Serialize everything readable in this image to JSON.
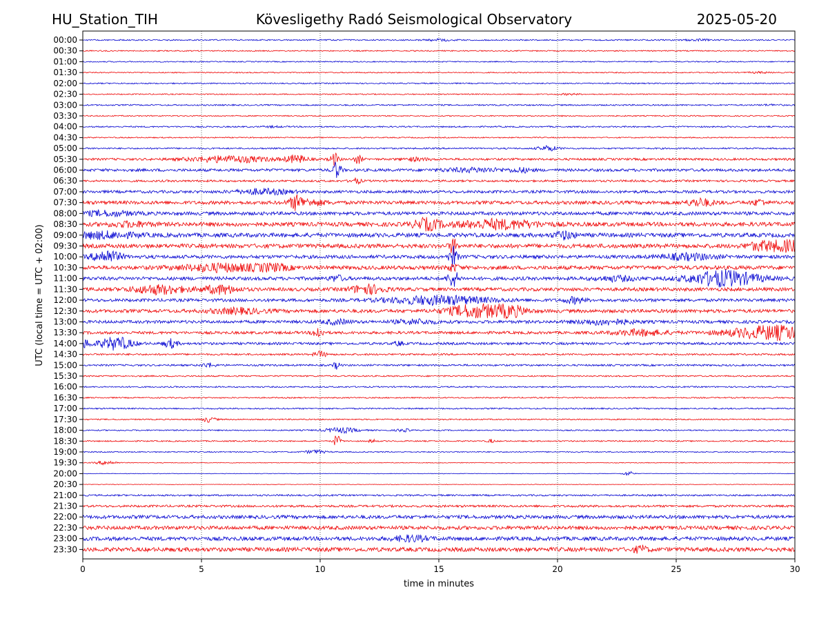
{
  "header": {
    "station": "HU_Station_TIH",
    "observatory": "Kövesligethy Radó Seismological Observatory",
    "date": "2025-05-20"
  },
  "chart_data": {
    "type": "line",
    "title": "Kövesligethy Radó Seismological Observatory",
    "xlabel": "time in minutes",
    "ylabel": "UTC (local time = UTC + 02:00)",
    "xlim": [
      0,
      30
    ],
    "xticks": [
      "0",
      "5",
      "10",
      "15",
      "20",
      "25",
      "30"
    ],
    "xgrid_minutes": [
      5,
      10,
      15,
      20,
      25
    ],
    "grid": "vertical dotted",
    "colors": {
      "even_row": "#0000d0",
      "odd_row": "#ee0000"
    },
    "rows": [
      {
        "label": "00:00",
        "amp": 0.9,
        "events": [
          [
            15,
            1.2,
            0.5
          ],
          [
            26,
            1.0,
            0.4
          ]
        ]
      },
      {
        "label": "00:30",
        "amp": 0.8,
        "events": []
      },
      {
        "label": "01:00",
        "amp": 0.8,
        "events": []
      },
      {
        "label": "01:30",
        "amp": 0.8,
        "events": [
          [
            28.5,
            1.0,
            0.3
          ]
        ]
      },
      {
        "label": "02:00",
        "amp": 0.9,
        "events": []
      },
      {
        "label": "02:30",
        "amp": 0.8,
        "events": [
          [
            20.5,
            0.9,
            0.3
          ]
        ]
      },
      {
        "label": "03:00",
        "amp": 1.0,
        "events": [
          [
            29,
            0.8,
            0.3
          ]
        ]
      },
      {
        "label": "03:30",
        "amp": 0.8,
        "events": []
      },
      {
        "label": "04:00",
        "amp": 1.0,
        "events": [
          [
            8,
            0.8,
            0.3
          ]
        ]
      },
      {
        "label": "04:30",
        "amp": 0.8,
        "events": []
      },
      {
        "label": "05:00",
        "amp": 1.1,
        "events": [
          [
            19.6,
            3.5,
            0.3
          ]
        ]
      },
      {
        "label": "05:30",
        "amp": 1.6,
        "events": [
          [
            6.2,
            4.5,
            1.2
          ],
          [
            9.0,
            5.5,
            0.3
          ],
          [
            10.6,
            9.0,
            0.12
          ],
          [
            11.6,
            6.0,
            0.12
          ],
          [
            14.0,
            2.0,
            0.4
          ]
        ]
      },
      {
        "label": "06:00",
        "amp": 2.0,
        "events": [
          [
            10.7,
            12.0,
            0.12
          ],
          [
            16.5,
            2.5,
            1.0
          ],
          [
            18.5,
            2.5,
            0.3
          ]
        ]
      },
      {
        "label": "06:30",
        "amp": 1.5,
        "events": [
          [
            11.5,
            4.0,
            0.15
          ]
        ]
      },
      {
        "label": "07:00",
        "amp": 2.0,
        "events": [
          [
            7.6,
            3.5,
            0.8
          ]
        ]
      },
      {
        "label": "07:30",
        "amp": 2.5,
        "events": [
          [
            9.0,
            9.0,
            0.2
          ],
          [
            9.6,
            3.5,
            0.5
          ],
          [
            26.0,
            5.0,
            0.4
          ],
          [
            28.5,
            4.0,
            0.2
          ]
        ]
      },
      {
        "label": "08:00",
        "amp": 2.5,
        "events": [
          [
            1.0,
            3.0,
            0.8
          ]
        ]
      },
      {
        "label": "08:30",
        "amp": 3.0,
        "events": [
          [
            14.5,
            7.5,
            0.4
          ],
          [
            17.5,
            6.0,
            1.2
          ],
          [
            2.0,
            3.0,
            0.6
          ]
        ]
      },
      {
        "label": "09:00",
        "amp": 3.0,
        "events": [
          [
            0.8,
            4.0,
            1.0
          ],
          [
            20.3,
            5.0,
            0.3
          ]
        ]
      },
      {
        "label": "09:30",
        "amp": 3.0,
        "events": [
          [
            15.6,
            12.0,
            0.1
          ],
          [
            29.7,
            7.0,
            0.7
          ],
          [
            28.5,
            4.0,
            0.4
          ]
        ]
      },
      {
        "label": "10:00",
        "amp": 2.5,
        "events": [
          [
            1.0,
            9.0,
            0.4
          ],
          [
            15.6,
            14.0,
            0.12
          ],
          [
            25.5,
            4.0,
            0.8
          ]
        ]
      },
      {
        "label": "10:30",
        "amp": 2.8,
        "events": [
          [
            5.8,
            5.0,
            1.2
          ],
          [
            8.0,
            4.0,
            0.5
          ],
          [
            15.6,
            4.0,
            0.2
          ]
        ]
      },
      {
        "label": "11:00",
        "amp": 2.5,
        "events": [
          [
            15.6,
            12.0,
            0.15
          ],
          [
            27.0,
            11.0,
            1.0
          ],
          [
            10.7,
            4.0,
            0.2
          ],
          [
            22.5,
            3.0,
            0.6
          ]
        ]
      },
      {
        "label": "11:30",
        "amp": 2.5,
        "events": [
          [
            3.2,
            6.0,
            0.8
          ],
          [
            5.8,
            6.0,
            0.5
          ],
          [
            12.0,
            6.0,
            0.5
          ]
        ]
      },
      {
        "label": "12:00",
        "amp": 2.2,
        "events": [
          [
            15.0,
            6.0,
            1.5
          ],
          [
            20.7,
            4.0,
            0.3
          ]
        ]
      },
      {
        "label": "12:30",
        "amp": 2.5,
        "events": [
          [
            16.5,
            9.0,
            0.8
          ],
          [
            18.0,
            7.0,
            0.5
          ],
          [
            6.5,
            3.5,
            0.8
          ]
        ]
      },
      {
        "label": "13:00",
        "amp": 2.2,
        "events": [
          [
            10.7,
            3.0,
            0.4
          ],
          [
            22.0,
            3.5,
            0.8
          ],
          [
            14.0,
            3.0,
            0.6
          ]
        ]
      },
      {
        "label": "13:30",
        "amp": 2.0,
        "events": [
          [
            9.9,
            8.0,
            0.15
          ],
          [
            29.2,
            10.0,
            1.4
          ],
          [
            23.5,
            4.0,
            0.8
          ]
        ]
      },
      {
        "label": "14:00",
        "amp": 1.8,
        "events": [
          [
            1.4,
            9.0,
            0.5
          ],
          [
            3.7,
            6.0,
            0.2
          ],
          [
            13.3,
            4.0,
            0.1
          ],
          [
            0.1,
            5.0,
            0.2
          ]
        ]
      },
      {
        "label": "14:30",
        "amp": 1.3,
        "events": [
          [
            10.0,
            4.0,
            0.2
          ]
        ]
      },
      {
        "label": "15:00",
        "amp": 1.3,
        "events": [
          [
            10.7,
            5.0,
            0.1
          ],
          [
            5.3,
            3.0,
            0.2
          ]
        ]
      },
      {
        "label": "15:30",
        "amp": 1.0,
        "events": []
      },
      {
        "label": "16:00",
        "amp": 1.0,
        "events": []
      },
      {
        "label": "16:30",
        "amp": 0.9,
        "events": []
      },
      {
        "label": "17:00",
        "amp": 1.0,
        "events": []
      },
      {
        "label": "17:30",
        "amp": 0.9,
        "events": [
          [
            5.3,
            3.5,
            0.2
          ]
        ]
      },
      {
        "label": "18:00",
        "amp": 0.9,
        "events": [
          [
            10.9,
            3.5,
            0.5
          ],
          [
            13.5,
            2.0,
            0.2
          ]
        ]
      },
      {
        "label": "18:30",
        "amp": 0.9,
        "events": [
          [
            10.7,
            9.0,
            0.1
          ],
          [
            17.2,
            2.5,
            0.1
          ],
          [
            12.2,
            2.5,
            0.1
          ]
        ]
      },
      {
        "label": "19:00",
        "amp": 0.8,
        "events": [
          [
            9.8,
            2.5,
            0.3
          ]
        ]
      },
      {
        "label": "19:30",
        "amp": 0.5,
        "events": [
          [
            1.0,
            3.0,
            0.3
          ]
        ]
      },
      {
        "label": "20:00",
        "amp": 0.4,
        "events": [
          [
            23.0,
            3.5,
            0.15
          ]
        ]
      },
      {
        "label": "20:30",
        "amp": 0.4,
        "events": []
      },
      {
        "label": "21:00",
        "amp": 1.2,
        "events": []
      },
      {
        "label": "21:30",
        "amp": 1.6,
        "events": []
      },
      {
        "label": "22:00",
        "amp": 2.5,
        "events": []
      },
      {
        "label": "22:30",
        "amp": 2.7,
        "events": []
      },
      {
        "label": "23:00",
        "amp": 2.8,
        "events": [
          [
            13.8,
            3.5,
            0.5
          ]
        ]
      },
      {
        "label": "23:30",
        "amp": 3.0,
        "events": [
          [
            23.5,
            4.5,
            0.2
          ]
        ]
      }
    ]
  }
}
